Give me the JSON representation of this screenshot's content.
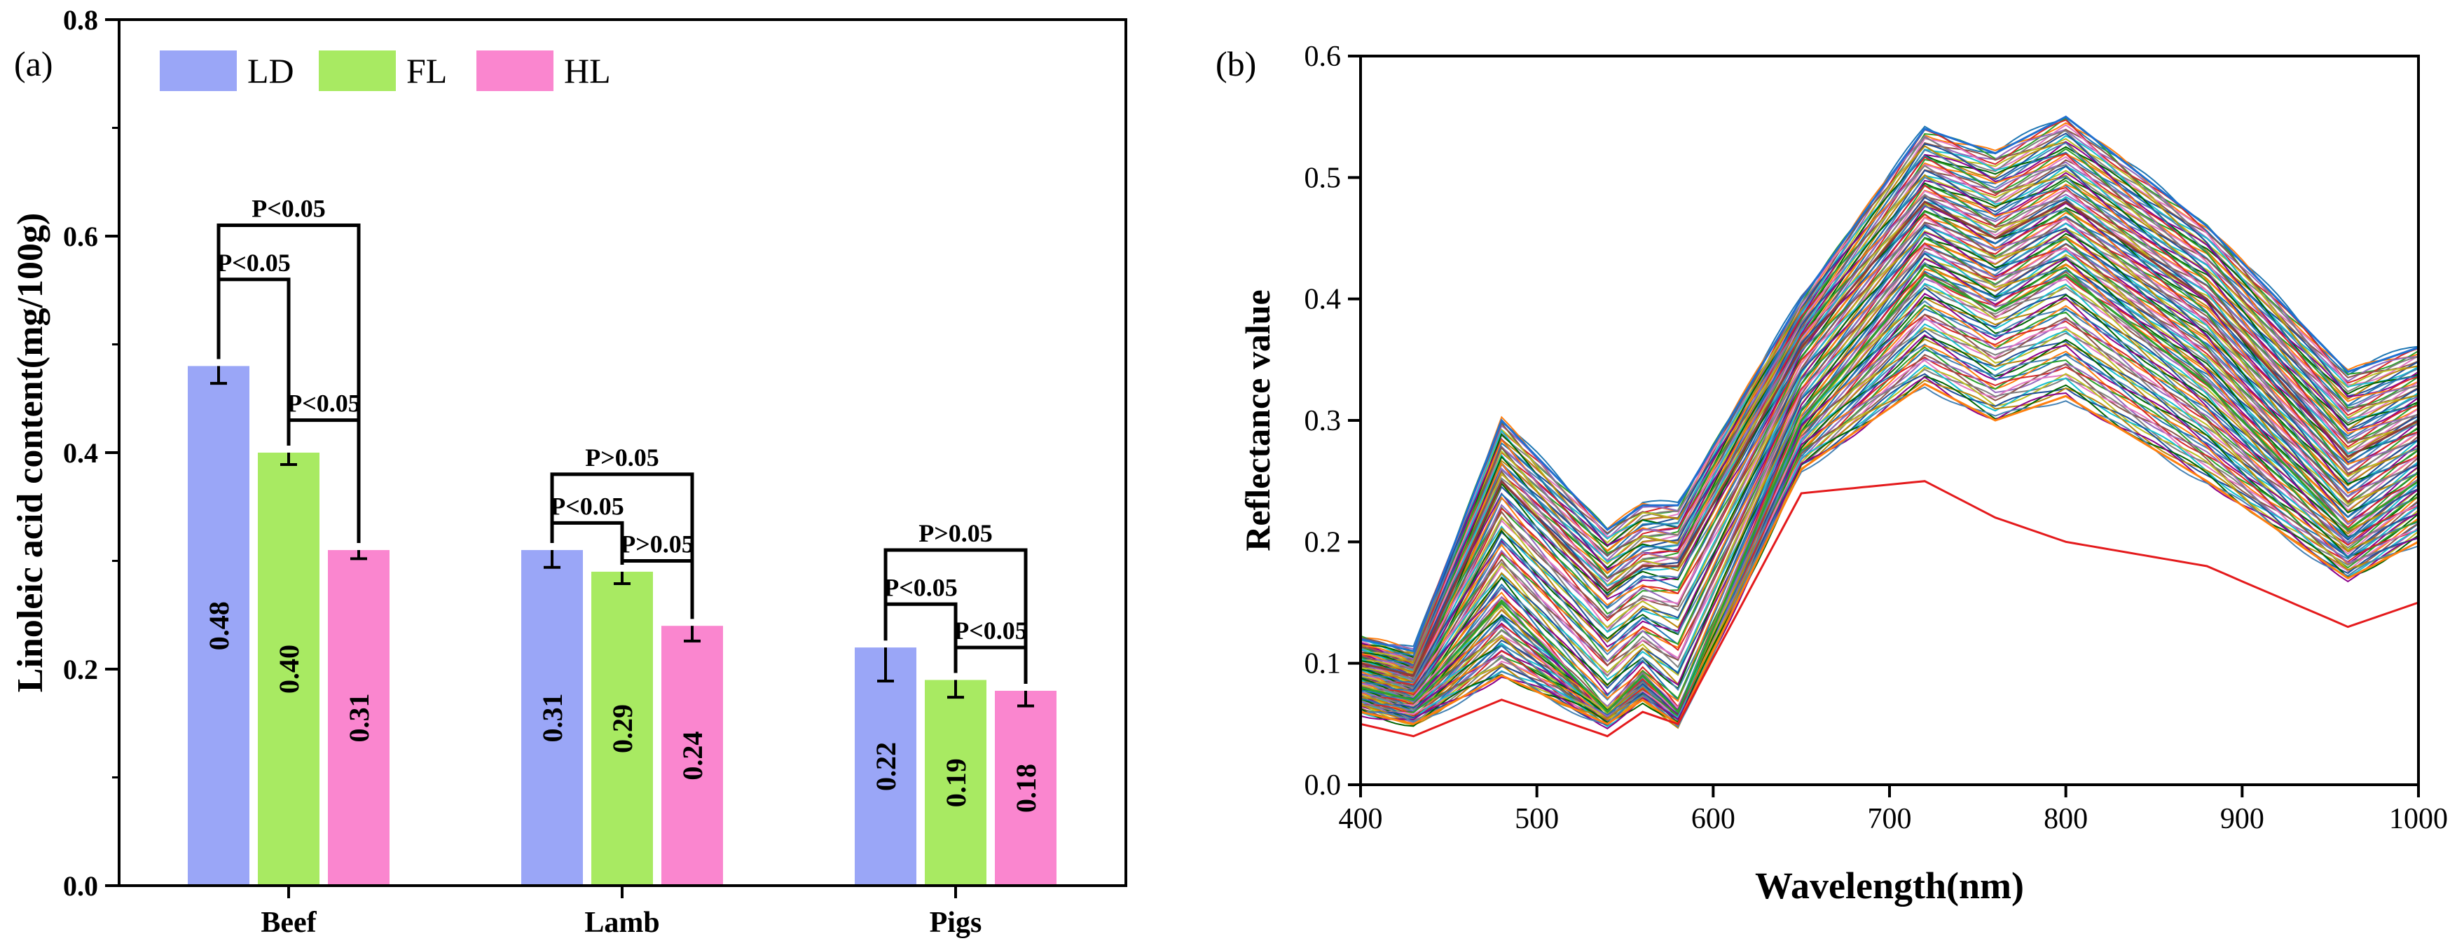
{
  "figure": {
    "panels": [
      "(a)",
      "(b)"
    ]
  },
  "chart_data": [
    {
      "type": "bar",
      "panel_label": "(a)",
      "ylabel": "Linoleic acid content(mg/100g)",
      "xlabel": "",
      "ylim": [
        0.0,
        0.8
      ],
      "yticks": [
        "0.0",
        "0.2",
        "0.4",
        "0.6",
        "0.8"
      ],
      "categories": [
        "Beef",
        "Lamb",
        "Pigs"
      ],
      "series": [
        {
          "name": "LD",
          "color": "#9aa6f7",
          "values": [
            0.48,
            0.31,
            0.22
          ],
          "errors": [
            0.016,
            0.016,
            0.031
          ],
          "labels": [
            "0.48",
            "0.31",
            "0.22"
          ]
        },
        {
          "name": "FL",
          "color": "#a8ea62",
          "values": [
            0.4,
            0.29,
            0.19
          ],
          "errors": [
            0.011,
            0.011,
            0.016
          ],
          "labels": [
            "0.40",
            "0.29",
            "0.19"
          ]
        },
        {
          "name": "HL",
          "color": "#fa86cf",
          "values": [
            0.31,
            0.24,
            0.18
          ],
          "errors": [
            0.008,
            0.014,
            0.014
          ],
          "labels": [
            "0.31",
            "0.24",
            "0.18"
          ]
        }
      ],
      "legend": {
        "position": "top-left",
        "entries": [
          "LD",
          "FL",
          "HL"
        ]
      },
      "annotations": [
        {
          "category": 0,
          "from": 0,
          "to": 2,
          "label": "P<0.05",
          "level": 0.61
        },
        {
          "category": 0,
          "from": 0,
          "to": 1,
          "label": "P<0.05",
          "level": 0.56
        },
        {
          "category": 0,
          "from": 1,
          "to": 2,
          "label": "P<0.05",
          "level": 0.43
        },
        {
          "category": 1,
          "from": 0,
          "to": 2,
          "label": "P>0.05",
          "level": 0.38
        },
        {
          "category": 1,
          "from": 0,
          "to": 1,
          "label": "P<0.05",
          "level": 0.335
        },
        {
          "category": 1,
          "from": 1,
          "to": 2,
          "label": "P>0.05",
          "level": 0.3
        },
        {
          "category": 2,
          "from": 0,
          "to": 2,
          "label": "P>0.05",
          "level": 0.31
        },
        {
          "category": 2,
          "from": 0,
          "to": 1,
          "label": "P<0.05",
          "level": 0.26
        },
        {
          "category": 2,
          "from": 1,
          "to": 2,
          "label": "P<0.05",
          "level": 0.22
        }
      ],
      "grid": false
    },
    {
      "type": "line",
      "panel_label": "(b)",
      "xlabel": "Wavelength(nm)",
      "ylabel": "Reflectance value",
      "xlim": [
        400,
        1000
      ],
      "ylim": [
        0.0,
        0.6
      ],
      "xticks": [
        "400",
        "500",
        "600",
        "700",
        "800",
        "900",
        "1000"
      ],
      "yticks": [
        "0.0",
        "0.1",
        "0.2",
        "0.3",
        "0.4",
        "0.5",
        "0.6"
      ],
      "legend": "none",
      "grid": false,
      "series_count_approx": 180,
      "representative_spectra": [
        {
          "x": [
            400,
            430,
            480,
            540,
            560,
            580,
            650,
            720,
            760,
            800,
            880,
            960,
            1000
          ],
          "y": [
            0.12,
            0.11,
            0.3,
            0.21,
            0.23,
            0.23,
            0.4,
            0.54,
            0.52,
            0.55,
            0.46,
            0.34,
            0.36
          ],
          "color": "#1f6fd1"
        },
        {
          "x": [
            400,
            430,
            480,
            540,
            560,
            580,
            650,
            720,
            760,
            800,
            880,
            960,
            1000
          ],
          "y": [
            0.1,
            0.09,
            0.25,
            0.16,
            0.18,
            0.18,
            0.36,
            0.48,
            0.45,
            0.48,
            0.4,
            0.27,
            0.3
          ],
          "color": "#8b3a3a"
        },
        {
          "x": [
            400,
            430,
            480,
            540,
            560,
            580,
            650,
            720,
            760,
            800,
            880,
            960,
            1000
          ],
          "y": [
            0.08,
            0.07,
            0.15,
            0.06,
            0.09,
            0.06,
            0.3,
            0.42,
            0.39,
            0.42,
            0.33,
            0.21,
            0.25
          ],
          "color": "#2ca02c"
        },
        {
          "x": [
            400,
            430,
            480,
            540,
            560,
            580,
            650,
            720,
            760,
            800,
            880,
            960,
            1000
          ],
          "y": [
            0.06,
            0.05,
            0.09,
            0.05,
            0.07,
            0.05,
            0.26,
            0.33,
            0.3,
            0.32,
            0.25,
            0.17,
            0.2
          ],
          "color": "#ff7f0e"
        },
        {
          "x": [
            400,
            430,
            480,
            540,
            560,
            580,
            650,
            720,
            760,
            800,
            880,
            960,
            1000
          ],
          "y": [
            0.05,
            0.04,
            0.07,
            0.04,
            0.06,
            0.05,
            0.24,
            0.25,
            0.22,
            0.2,
            0.18,
            0.13,
            0.15
          ],
          "color": "#e41a1c"
        }
      ]
    }
  ]
}
